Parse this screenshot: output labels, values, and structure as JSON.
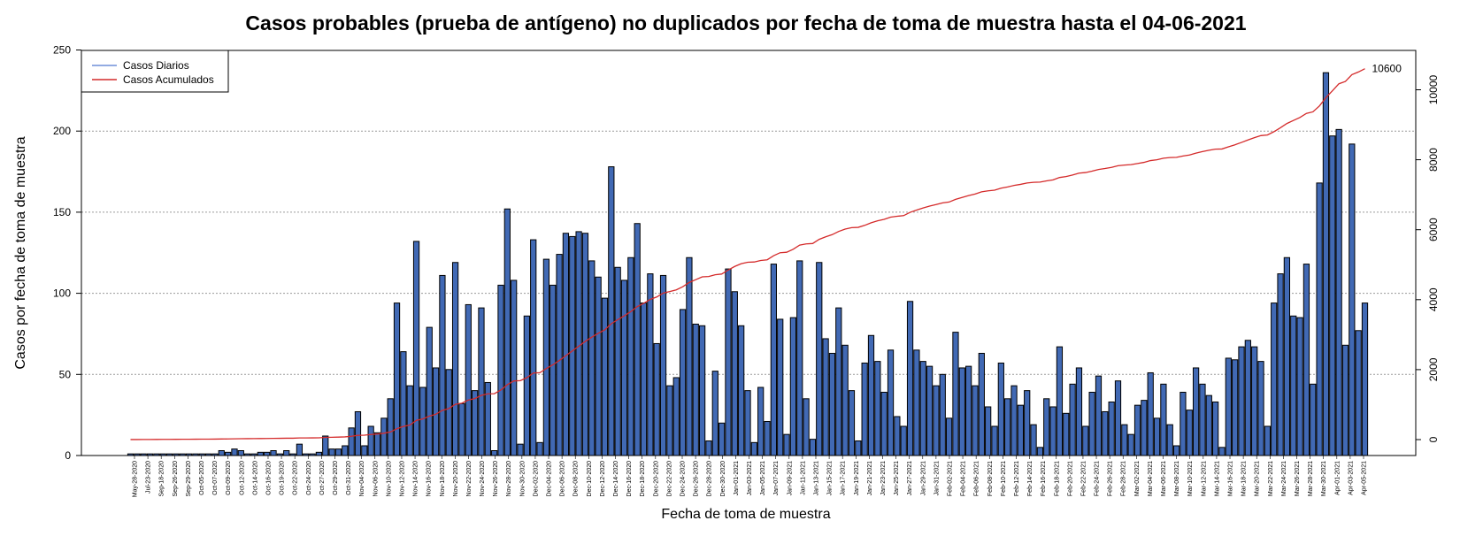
{
  "chart_data": {
    "type": "bar",
    "title": "Casos probables (prueba de antígeno) no duplicados por fecha de toma de muestra hasta el 04-06-2021",
    "xlabel": "Fecha de toma de muestra",
    "ylabel": "Casos por fecha de toma de muestra",
    "ylim": [
      0,
      250
    ],
    "yticks": [
      0,
      50,
      100,
      150,
      200,
      250
    ],
    "y2lim": [
      -400,
      11000
    ],
    "y2ticks": [
      0,
      2000,
      4000,
      6000,
      8000,
      10000
    ],
    "grid": "horizontal dotted",
    "legend_position": "top-left",
    "last_cumulative_label": "10600",
    "x_tick_labels": [
      "May-28-2020",
      "Jul-23-2020",
      "Sep-18-2020",
      "Sep-26-2020",
      "Sep-29-2020",
      "Oct-05-2020",
      "Oct-07-2020",
      "Oct-09-2020",
      "Oct-12-2020",
      "Oct-14-2020",
      "Oct-16-2020",
      "Oct-19-2020",
      "Oct-22-2020",
      "Oct-24-2020",
      "Oct-27-2020",
      "Oct-29-2020",
      "Oct-31-2020",
      "Nov-04-2020",
      "Nov-06-2020",
      "Nov-10-2020",
      "Nov-12-2020",
      "Nov-14-2020",
      "Nov-16-2020",
      "Nov-18-2020",
      "Nov-20-2020",
      "Nov-22-2020",
      "Nov-24-2020",
      "Nov-26-2020",
      "Nov-28-2020",
      "Nov-30-2020",
      "Dec-02-2020",
      "Dec-04-2020",
      "Dec-06-2020",
      "Dec-08-2020",
      "Dec-10-2020",
      "Dec-12-2020",
      "Dec-14-2020",
      "Dec-16-2020",
      "Dec-18-2020",
      "Dec-20-2020",
      "Dec-22-2020",
      "Dec-24-2020",
      "Dec-26-2020",
      "Dec-28-2020",
      "Dec-30-2020",
      "Jan-01-2021",
      "Jan-03-2021",
      "Jan-05-2021",
      "Jan-07-2021",
      "Jan-09-2021",
      "Jan-11-2021",
      "Jan-13-2021",
      "Jan-15-2021",
      "Jan-17-2021",
      "Jan-19-2021",
      "Jan-21-2021",
      "Jan-23-2021",
      "Jan-25-2021",
      "Jan-27-2021",
      "Jan-29-2021",
      "Jan-31-2021",
      "Feb-02-2021",
      "Feb-04-2021",
      "Feb-06-2021",
      "Feb-08-2021",
      "Feb-10-2021",
      "Feb-12-2021",
      "Feb-14-2021",
      "Feb-16-2021",
      "Feb-18-2021",
      "Feb-20-2021",
      "Feb-22-2021",
      "Feb-24-2021",
      "Feb-26-2021",
      "Feb-28-2021",
      "Mar-02-2021",
      "Mar-04-2021",
      "Mar-06-2021",
      "Mar-08-2021",
      "Mar-10-2021",
      "Mar-12-2021",
      "Mar-14-2021",
      "Mar-16-2021",
      "Mar-18-2021",
      "Mar-20-2021",
      "Mar-22-2021",
      "Mar-24-2021",
      "Mar-26-2021",
      "Mar-28-2021",
      "Mar-30-2021",
      "Apr-01-2021",
      "Apr-03-2021",
      "Apr-05-2021"
    ],
    "series": [
      {
        "name": "Casos Diarios",
        "color": "#6e8fd8",
        "values": [
          1,
          1,
          1,
          1,
          1,
          1,
          1,
          1,
          1,
          1,
          1,
          1,
          1,
          1,
          3,
          2,
          4,
          3,
          1,
          1,
          2,
          2,
          3,
          1,
          3,
          1,
          7,
          1,
          1,
          2,
          12,
          4,
          4,
          6,
          17,
          27,
          6,
          18,
          14,
          23,
          35,
          94,
          64,
          43,
          132,
          42,
          79,
          54,
          111,
          53,
          119,
          32,
          93,
          40,
          91,
          45,
          3,
          105,
          152,
          108,
          7,
          86,
          133,
          8,
          121,
          105,
          124,
          137,
          135,
          138,
          137,
          120,
          110,
          97,
          178,
          116,
          108,
          122,
          143,
          94,
          112,
          69,
          111,
          43,
          48,
          90,
          122,
          81,
          80,
          9,
          52,
          20,
          115,
          101,
          80,
          40,
          8,
          42,
          21,
          118,
          84,
          13,
          85,
          120,
          35,
          10,
          119,
          72,
          63,
          91,
          68,
          40,
          9,
          57,
          74,
          58,
          39,
          65,
          24,
          18,
          95,
          65,
          58,
          55,
          43,
          50,
          23,
          76,
          54,
          55,
          43,
          63,
          30,
          18,
          57,
          35,
          43,
          31,
          40,
          19,
          5,
          35,
          30,
          67,
          26,
          44,
          54,
          18,
          39,
          49,
          27,
          33,
          46,
          19,
          13,
          31,
          34,
          51,
          23,
          44,
          19,
          6,
          39,
          28,
          54,
          44,
          37,
          33,
          5,
          60,
          59,
          67,
          71,
          67,
          58,
          18,
          94,
          112,
          122,
          86,
          85,
          118,
          44,
          168,
          236,
          197,
          201,
          68,
          192,
          77,
          94
        ]
      },
      {
        "name": "Casos Acumulados",
        "color": "#d42a2a"
      }
    ]
  }
}
